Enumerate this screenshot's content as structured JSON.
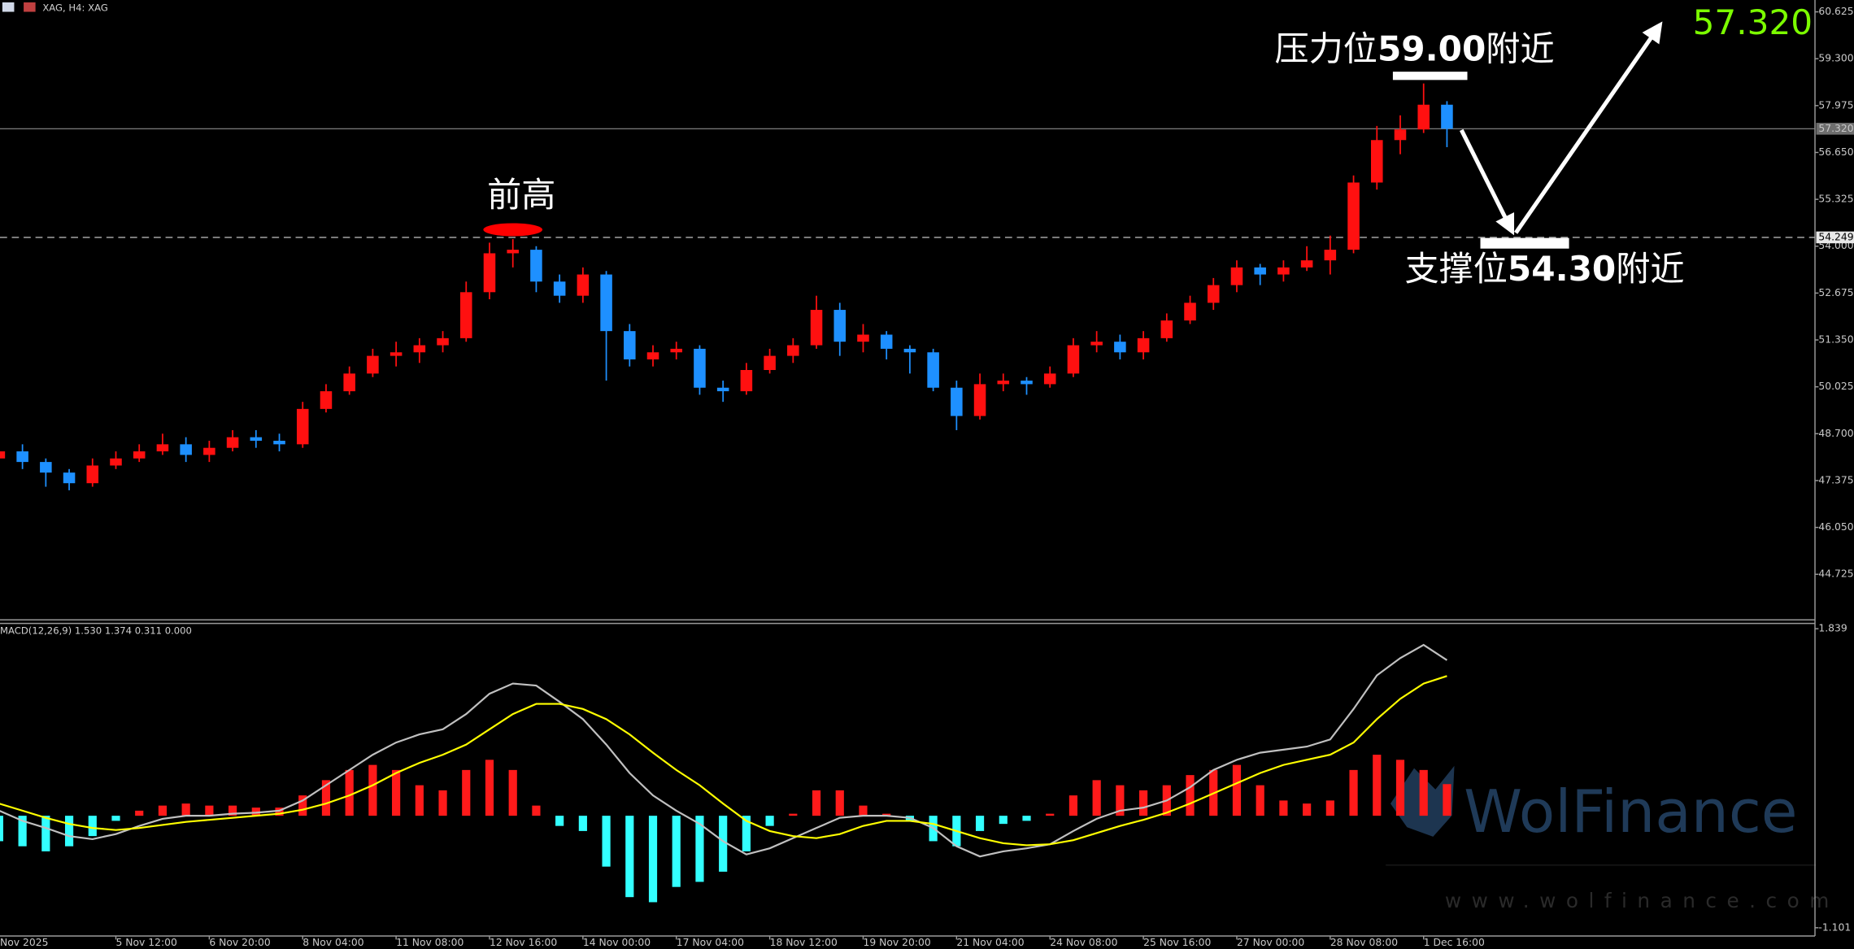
{
  "chart_data": [
    {
      "type": "candlestick",
      "title": "XAG, H4: XAG",
      "categories": [
        "Nov 2025",
        null,
        null,
        null,
        null,
        "5 Nov 12:00",
        null,
        null,
        null,
        "6 Nov 20:00",
        null,
        null,
        null,
        "8 Nov 04:00",
        null,
        null,
        null,
        "11 Nov 08:00",
        null,
        null,
        null,
        "12 Nov 16:00",
        null,
        null,
        null,
        "14 Nov 00:00",
        null,
        null,
        null,
        "17 Nov 04:00",
        null,
        null,
        null,
        "18 Nov 12:00",
        null,
        null,
        null,
        "19 Nov 20:00",
        null,
        null,
        null,
        "21 Nov 04:00",
        null,
        null,
        null,
        "24 Nov 08:00",
        null,
        null,
        null,
        "25 Nov 16:00",
        null,
        null,
        null,
        "27 Nov 00:00",
        null,
        null,
        null,
        "28 Nov 08:00",
        null,
        null,
        null,
        "1 Dec 16:00",
        null
      ],
      "open": [
        48.0,
        48.2,
        47.9,
        47.6,
        47.3,
        47.8,
        48.0,
        48.2,
        48.4,
        48.1,
        48.3,
        48.6,
        48.5,
        48.4,
        49.4,
        49.9,
        50.4,
        50.9,
        51.0,
        51.2,
        51.4,
        52.7,
        53.8,
        53.9,
        53.0,
        52.6,
        53.2,
        51.6,
        50.8,
        51.0,
        51.1,
        50.0,
        49.9,
        50.5,
        50.9,
        51.2,
        52.2,
        51.3,
        51.5,
        51.1,
        51.0,
        50.0,
        49.2,
        50.1,
        50.2,
        50.1,
        50.4,
        51.2,
        51.3,
        51.0,
        51.4,
        51.9,
        52.4,
        52.9,
        53.4,
        53.2,
        53.4,
        53.6,
        53.9,
        55.8,
        57.0,
        57.3,
        58.0
      ],
      "high": [
        48.4,
        48.4,
        48.0,
        47.7,
        48.0,
        48.2,
        48.4,
        48.7,
        48.6,
        48.5,
        48.8,
        48.8,
        48.7,
        49.6,
        50.1,
        50.6,
        51.1,
        51.3,
        51.4,
        51.6,
        53.0,
        54.1,
        54.2,
        54.0,
        53.2,
        53.4,
        53.3,
        51.8,
        51.2,
        51.3,
        51.2,
        50.2,
        50.7,
        51.1,
        51.4,
        52.6,
        52.4,
        51.8,
        51.6,
        51.2,
        51.1,
        50.2,
        50.4,
        50.4,
        50.3,
        50.6,
        51.4,
        51.6,
        51.5,
        51.6,
        52.1,
        52.6,
        53.1,
        53.6,
        53.5,
        53.6,
        54.0,
        54.3,
        56.0,
        57.4,
        57.7,
        58.6,
        58.1
      ],
      "low": [
        47.8,
        47.7,
        47.2,
        47.1,
        47.2,
        47.7,
        47.9,
        48.1,
        47.9,
        47.9,
        48.2,
        48.3,
        48.2,
        48.3,
        49.3,
        49.8,
        50.3,
        50.6,
        50.7,
        51.0,
        51.3,
        52.5,
        53.4,
        52.7,
        52.4,
        52.4,
        50.2,
        50.6,
        50.6,
        50.8,
        49.8,
        49.6,
        49.8,
        50.4,
        50.7,
        51.1,
        50.9,
        51.0,
        50.8,
        50.4,
        49.9,
        48.8,
        49.1,
        49.9,
        49.8,
        50.0,
        50.3,
        51.0,
        50.8,
        50.8,
        51.3,
        51.8,
        52.2,
        52.7,
        52.9,
        53.0,
        53.3,
        53.2,
        53.8,
        55.6,
        56.6,
        57.2,
        56.8
      ],
      "close": [
        48.2,
        47.9,
        47.6,
        47.3,
        47.8,
        48.0,
        48.2,
        48.4,
        48.1,
        48.3,
        48.6,
        48.5,
        48.4,
        49.4,
        49.9,
        50.4,
        50.9,
        51.0,
        51.2,
        51.4,
        52.7,
        53.8,
        53.9,
        53.0,
        52.6,
        53.2,
        51.6,
        50.8,
        51.0,
        51.1,
        50.0,
        49.9,
        50.5,
        50.9,
        51.2,
        52.2,
        51.3,
        51.5,
        51.1,
        51.0,
        50.0,
        49.2,
        50.1,
        50.2,
        50.1,
        50.4,
        51.2,
        51.3,
        51.0,
        51.4,
        51.9,
        52.4,
        52.9,
        53.4,
        53.2,
        53.4,
        53.6,
        53.9,
        55.8,
        57.0,
        57.3,
        58.0,
        57.32
      ],
      "up_color": "#ff1010",
      "down_color": "#1e90ff",
      "ylim": [
        43.42,
        60.96
      ],
      "yticks": [
        60.625,
        {
          "value": 59.3,
          "label": "59.300"
        },
        57.975,
        {
          "value": 56.65,
          "label": "56.650"
        },
        55.325,
        {
          "value": 54.0,
          "label": "54.000"
        },
        52.675,
        {
          "value": 51.35,
          "label": "51.350"
        },
        50.025,
        {
          "value": 48.7,
          "label": "48.700"
        },
        47.375,
        {
          "value": 46.05,
          "label": "46.050"
        },
        44.725
      ],
      "current_price": {
        "value": 57.32,
        "label": "57.320"
      },
      "level_line": {
        "value": 54.249,
        "label": "54.249"
      },
      "headline_price": "57.320",
      "previous_high": {
        "text": "前高"
      },
      "resistance": {
        "prefix": "压力位",
        "label": "59.00",
        "suffix": "附近",
        "value": 59.0
      },
      "support": {
        "prefix": "支撑位",
        "label": "54.30",
        "suffix": "附近",
        "value": 54.3
      },
      "watermark": {
        "brand": "WolFinance",
        "url": "www.wolfinance.com"
      }
    },
    {
      "type": "macd",
      "title": "MACD(12,26,9) 1.530 1.374 0.311 0.000",
      "ylim": [
        -1.101,
        1.839
      ],
      "yticks": [
        1.839,
        -1.101
      ],
      "histogram": {
        "pos_color": "#ff1a1a",
        "neg_color": "#33ffff",
        "values": [
          -0.25,
          -0.3,
          -0.35,
          -0.3,
          -0.2,
          -0.05,
          0.05,
          0.1,
          0.12,
          0.1,
          0.1,
          0.08,
          0.08,
          0.2,
          0.35,
          0.45,
          0.5,
          0.45,
          0.3,
          0.25,
          0.45,
          0.55,
          0.45,
          0.1,
          -0.1,
          -0.15,
          -0.5,
          -0.8,
          -0.85,
          -0.7,
          -0.65,
          -0.55,
          -0.35,
          -0.1,
          0.02,
          0.25,
          0.25,
          0.1,
          0.02,
          -0.05,
          -0.25,
          -0.3,
          -0.15,
          -0.08,
          -0.05,
          0.02,
          0.2,
          0.35,
          0.3,
          0.25,
          0.3,
          0.4,
          0.45,
          0.5,
          0.3,
          0.15,
          0.12,
          0.15,
          0.45,
          0.6,
          0.55,
          0.45,
          0.311
        ]
      },
      "macd_line": {
        "color": "#c0c0c0",
        "values": [
          0.05,
          -0.05,
          -0.12,
          -0.2,
          -0.23,
          -0.18,
          -0.1,
          -0.03,
          0.0,
          0.0,
          0.02,
          0.03,
          0.05,
          0.15,
          0.3,
          0.45,
          0.6,
          0.72,
          0.8,
          0.85,
          1.0,
          1.2,
          1.3,
          1.28,
          1.12,
          0.95,
          0.7,
          0.42,
          0.2,
          0.05,
          -0.08,
          -0.25,
          -0.38,
          -0.32,
          -0.22,
          -0.12,
          -0.02,
          0.0,
          0.0,
          -0.02,
          -0.12,
          -0.3,
          -0.4,
          -0.35,
          -0.32,
          -0.28,
          -0.15,
          -0.03,
          0.05,
          0.08,
          0.15,
          0.28,
          0.45,
          0.55,
          0.62,
          0.65,
          0.68,
          0.75,
          1.05,
          1.38,
          1.55,
          1.68,
          1.53
        ]
      },
      "signal_line": {
        "color": "#ffff00",
        "values": [
          0.12,
          0.05,
          -0.02,
          -0.08,
          -0.12,
          -0.14,
          -0.12,
          -0.09,
          -0.06,
          -0.04,
          -0.02,
          0.0,
          0.02,
          0.06,
          0.12,
          0.2,
          0.3,
          0.42,
          0.52,
          0.6,
          0.7,
          0.85,
          1.0,
          1.1,
          1.1,
          1.05,
          0.95,
          0.8,
          0.62,
          0.45,
          0.3,
          0.12,
          -0.05,
          -0.15,
          -0.2,
          -0.22,
          -0.18,
          -0.1,
          -0.05,
          -0.05,
          -0.08,
          -0.15,
          -0.22,
          -0.27,
          -0.29,
          -0.28,
          -0.24,
          -0.17,
          -0.1,
          -0.04,
          0.03,
          0.12,
          0.22,
          0.32,
          0.42,
          0.5,
          0.55,
          0.6,
          0.72,
          0.95,
          1.15,
          1.3,
          1.374
        ]
      }
    }
  ]
}
